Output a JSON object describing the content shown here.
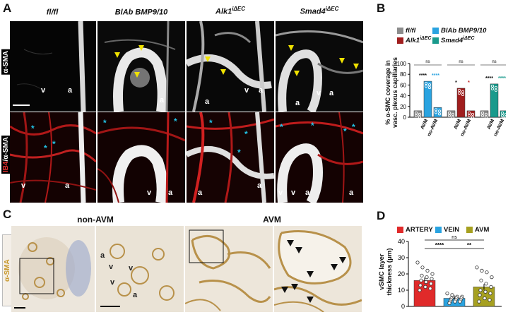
{
  "panelA": {
    "label": "A",
    "columns": [
      {
        "title": "fl/fl",
        "sup": ""
      },
      {
        "title": "BlAb BMP9/10",
        "sup": ""
      },
      {
        "title": "Alk1",
        "sup": "iΔEC"
      },
      {
        "title": "Smad4",
        "sup": "iΔEC"
      }
    ],
    "row1_label": "α-SMA",
    "row2_label_a": "IB4",
    "row2_label_b": "/α-SMA",
    "letters": {
      "v": "v",
      "a": "a"
    },
    "asterisk": "*"
  },
  "panelB": {
    "label": "B",
    "legend": [
      {
        "name": "fl/fl",
        "sup": "",
        "color": "#8c8c8c"
      },
      {
        "name": "BlAb BMP9/10",
        "sup": "",
        "color": "#2aa3e0"
      },
      {
        "name": "Alk1",
        "sup": "iΔEC",
        "color": "#a01e1e"
      },
      {
        "name": "Smad4",
        "sup": "iΔEC",
        "color": "#1a9a8c"
      }
    ],
    "ylabel_1": "% α-SMC coverage in",
    "ylabel_2": "vasc. plexus capillaries",
    "ns": "ns",
    "stars4": "****",
    "stars1": "*",
    "chart_data": {
      "type": "bar",
      "ylim": [
        0,
        100
      ],
      "yticks": [
        "0",
        "20",
        "40",
        "60",
        "80",
        "100"
      ],
      "groups": [
        {
          "bars": [
            {
              "label": "",
              "value": 12,
              "color": "#8c8c8c"
            },
            {
              "label": "AVM",
              "value": 67,
              "color": "#2aa3e0"
            },
            {
              "label": "no-AVM",
              "value": 18,
              "color": "#2aa3e0"
            }
          ]
        },
        {
          "bars": [
            {
              "label": "",
              "value": 12,
              "color": "#8c8c8c"
            },
            {
              "label": "AVM",
              "value": 54,
              "color": "#a01e1e"
            },
            {
              "label": "no-AVM",
              "value": 12,
              "color": "#a01e1e"
            }
          ]
        },
        {
          "bars": [
            {
              "label": "",
              "value": 12,
              "color": "#8c8c8c"
            },
            {
              "label": "AVM",
              "value": 62,
              "color": "#1a9a8c"
            },
            {
              "label": "no-AVM",
              "value": 12,
              "color": "#1a9a8c"
            }
          ]
        }
      ]
    }
  },
  "panelC": {
    "label": "C",
    "side_label": "α-SMA",
    "title_left": "non-AVM",
    "title_right": "AVM",
    "letters": {
      "a": "a",
      "v": "v"
    }
  },
  "panelD": {
    "label": "D",
    "legend": [
      {
        "name": "ARTERY",
        "color": "#e02a2a"
      },
      {
        "name": "VEIN",
        "color": "#2aa3e0"
      },
      {
        "name": "AVM",
        "color": "#a6a020"
      }
    ],
    "ylabel_1": "vSMC layer",
    "ylabel_2": "thickness (μm)",
    "ns": "ns",
    "stars4": "****",
    "stars2": "**",
    "chart_data": {
      "type": "bar",
      "categories": [
        "ARTERY",
        "VEIN",
        "AVM"
      ],
      "values": [
        16,
        5,
        12
      ],
      "ylim": [
        0,
        40
      ],
      "yticks": [
        "0",
        "10",
        "20",
        "30",
        "40"
      ]
    }
  }
}
